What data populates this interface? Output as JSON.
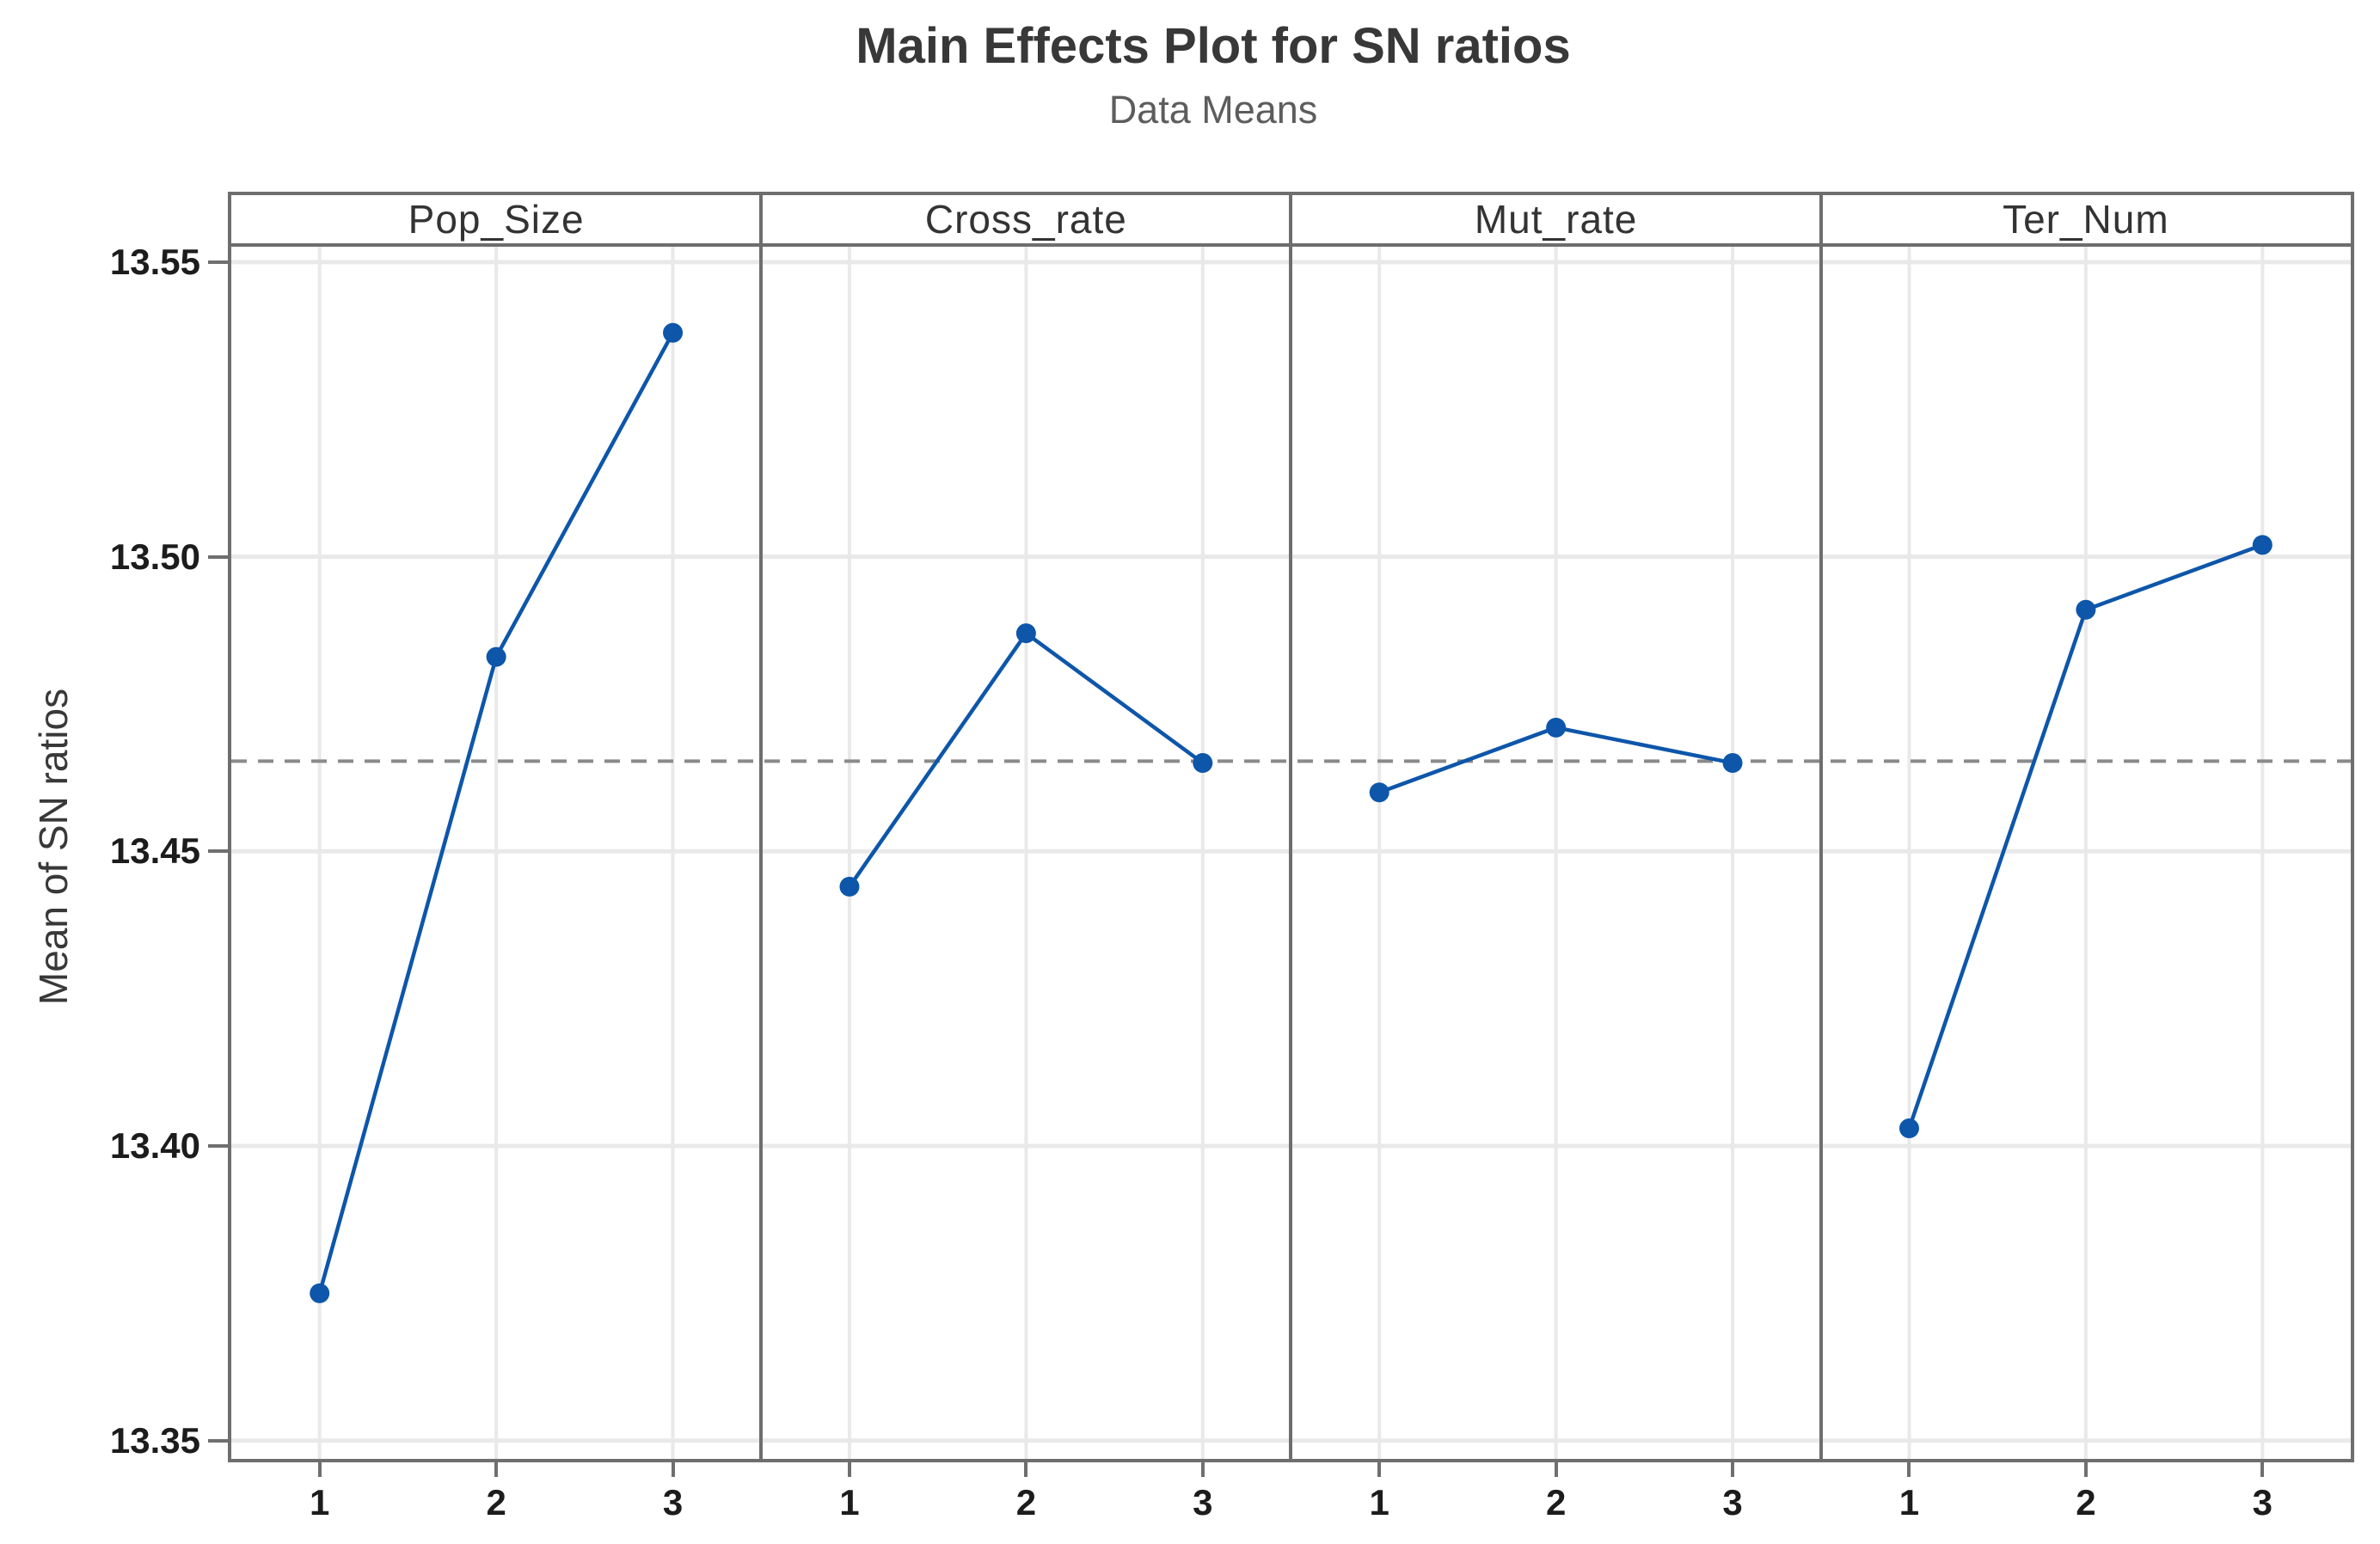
{
  "title": "Main Effects Plot for SN ratios",
  "subtitle": "Data Means",
  "chart_data": {
    "type": "line",
    "title": "Main Effects Plot for SN ratios",
    "subtitle": "Data Means",
    "ylabel": "Mean of SN ratios",
    "panels": [
      {
        "factor": "Pop_Size",
        "x": [
          1,
          2,
          3
        ],
        "values": [
          13.375,
          13.483,
          13.538
        ]
      },
      {
        "factor": "Cross_rate",
        "x": [
          1,
          2,
          3
        ],
        "values": [
          13.444,
          13.487,
          13.465
        ]
      },
      {
        "factor": "Mut_rate",
        "x": [
          1,
          2,
          3
        ],
        "values": [
          13.46,
          13.471,
          13.465
        ]
      },
      {
        "factor": "Ter_Num",
        "x": [
          1,
          2,
          3
        ],
        "values": [
          13.403,
          13.491,
          13.502
        ]
      }
    ],
    "overall_mean": 13.4653,
    "reference_line_style": "dashed",
    "y_ticks": [
      13.55,
      13.5,
      13.45,
      13.4,
      13.35
    ],
    "y_tick_labels": [
      "13.55",
      "13.50",
      "13.45",
      "13.40",
      "13.35"
    ],
    "x_tick_labels": [
      "1",
      "2",
      "3"
    ],
    "ylim": [
      13.3469,
      13.5526
    ],
    "grid": true,
    "legend": "none",
    "colors": {
      "series": "#0d56aa",
      "grid": "#e9e9e9",
      "frame": "#6e6e6e",
      "reference_line": "#8a8a8a",
      "title_text": "#383838",
      "subtitle_text": "#5d5d5d",
      "tick_text": "#1c1c1c",
      "header_text": "#333333"
    }
  }
}
